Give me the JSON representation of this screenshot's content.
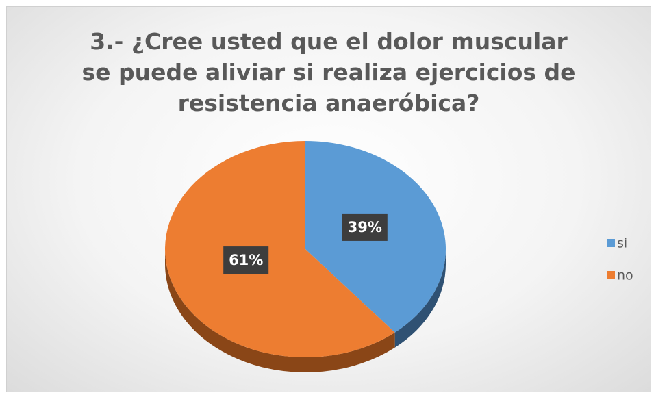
{
  "chart_data": {
    "type": "pie",
    "title": "3.- ¿Cree usted que el dolor muscular se puede aliviar si realiza ejercicios de resistencia anaeróbica?",
    "categories": [
      "si",
      "no"
    ],
    "values": [
      39,
      61
    ],
    "value_labels": [
      "39%",
      "61%"
    ],
    "colors": [
      "#5b9bd5",
      "#ed7d31"
    ],
    "side_colors": [
      "#2f5173",
      "#8a4617"
    ],
    "legend": "right"
  }
}
